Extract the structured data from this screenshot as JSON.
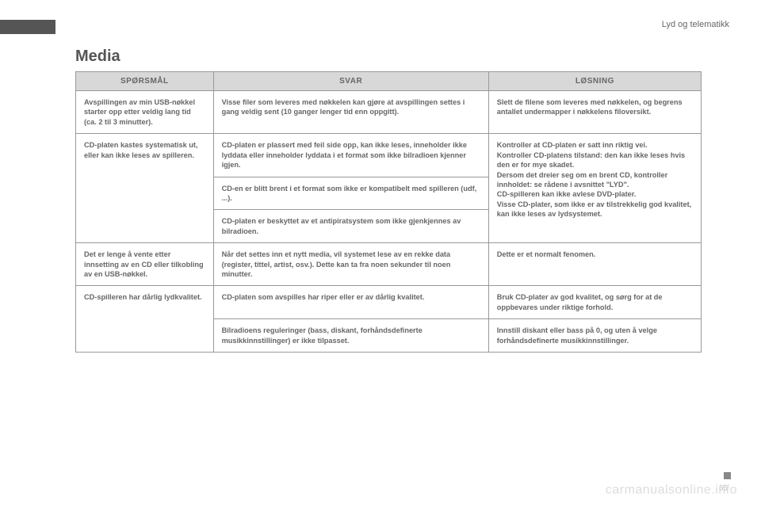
{
  "header": {
    "section": "Lyd og telematikk"
  },
  "page": {
    "title": "Media",
    "number": "65",
    "watermark": "carmanualsonline.info"
  },
  "table": {
    "columns": [
      "SPØRSMÅL",
      "SVAR",
      "LØSNING"
    ],
    "rows": [
      {
        "q": "Avspillingen av min USB-nøkkel starter opp etter veldig lang tid (ca. 2 til 3 minutter).",
        "a": "Visse filer som leveres med nøkkelen kan gjøre at avspillingen settes i gang veldig sent (10 ganger lenger tid enn oppgitt).",
        "s": "Slett de filene som leveres med nøkkelen, og begrens antallet undermapper i nøkkelens filoversikt."
      },
      {
        "q": "CD-platen kastes systematisk ut, eller kan ikke leses av spilleren.",
        "a": [
          "CD-platen er plassert med feil side opp, kan ikke leses, inneholder ikke lyddata eller inneholder lyddata i et format som ikke bilradioen kjenner igjen.",
          "CD-en er blitt brent i et format som ikke er kompatibelt med spilleren (udf, ...).",
          "CD-platen er beskyttet av et antipiratsystem som ikke gjenkjennes av bilradioen."
        ],
        "s": "Kontroller at CD-platen er satt inn riktig vei.\nKontroller CD-platens tilstand: den kan ikke leses hvis den er for mye skadet.\nDersom det dreier seg om en brent CD, kontroller innholdet: se rådene i avsnittet \"LYD\".\nCD-spilleren kan ikke avlese DVD-plater.\nVisse CD-plater, som ikke er av tilstrekkelig god kvalitet, kan ikke leses av lydsystemet."
      },
      {
        "q": "Det er lenge å vente etter innsetting av en CD eller tilkobling av en USB-nøkkel.",
        "a": "Når det settes inn et nytt media, vil systemet lese av en rekke data (register, tittel, artist, osv.). Dette kan ta fra noen sekunder til noen minutter.",
        "s": "Dette er et normalt fenomen."
      },
      {
        "q": "CD-spilleren har dårlig lydkvalitet.",
        "a": [
          "CD-platen som avspilles har riper eller er av dårlig kvalitet.",
          "Bilradioens reguleringer (bass, diskant, forhåndsdefinerte musikkinnstillinger) er ikke tilpasset."
        ],
        "s": [
          "Bruk CD-plater av god kvalitet, og sørg for at de oppbevares under riktige forhold.",
          "Innstill diskant eller bass på 0, og uten å velge forhåndsdefinerte musikkinnstillinger."
        ]
      }
    ]
  }
}
